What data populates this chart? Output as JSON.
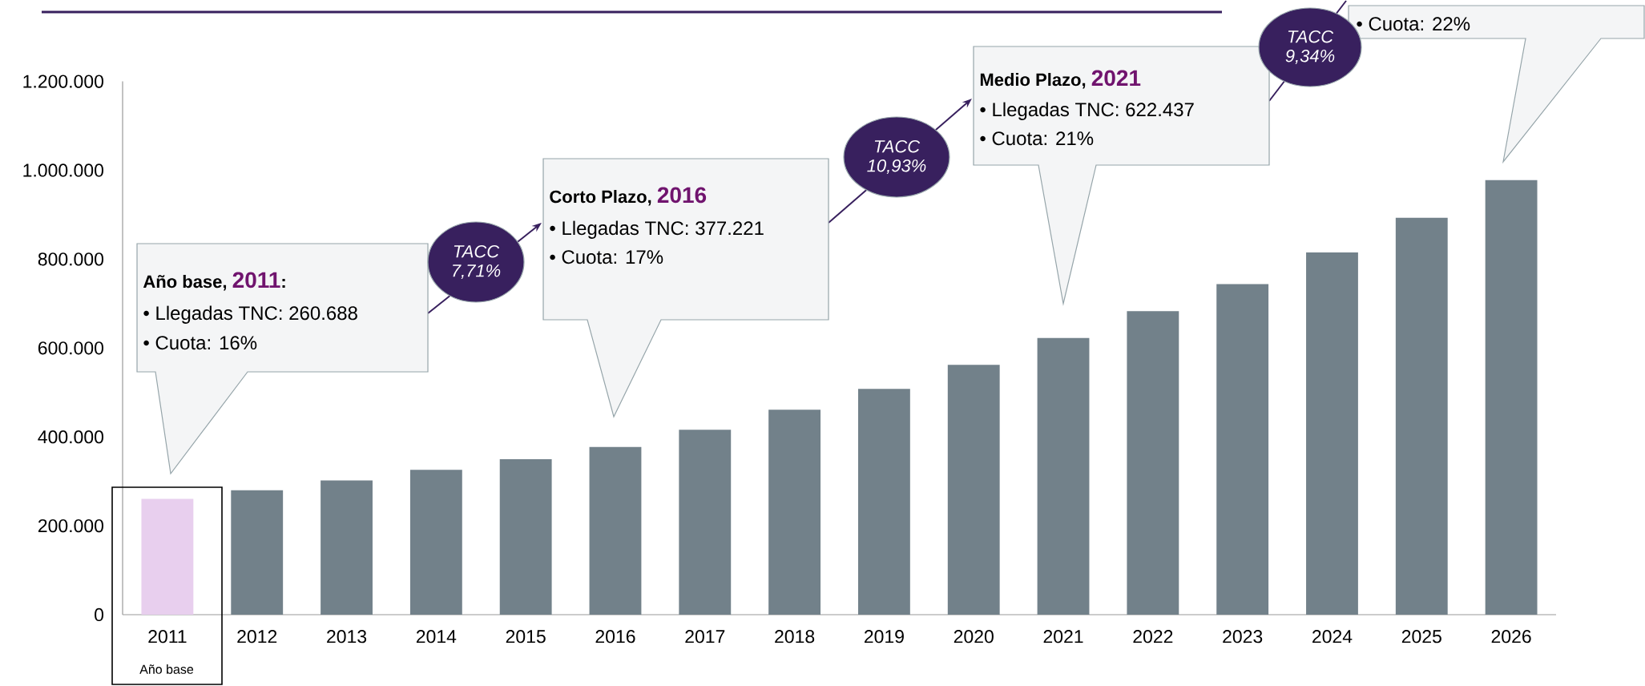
{
  "chart_data": {
    "type": "bar",
    "categories": [
      "2011",
      "2012",
      "2013",
      "2014",
      "2015",
      "2016",
      "2017",
      "2018",
      "2019",
      "2020",
      "2021",
      "2022",
      "2023",
      "2024",
      "2025",
      "2026"
    ],
    "values": [
      260688,
      280000,
      302000,
      326000,
      350000,
      377221,
      416000,
      461000,
      508000,
      562000,
      622437,
      683000,
      744000,
      815000,
      893000,
      978000
    ],
    "colors": [
      "#e8cfee",
      "#72818a",
      "#72818a",
      "#72818a",
      "#72818a",
      "#72818a",
      "#72818a",
      "#72818a",
      "#72818a",
      "#72818a",
      "#72818a",
      "#72818a",
      "#72818a",
      "#72818a",
      "#72818a",
      "#72818a"
    ],
    "ylim": [
      0,
      1200000
    ],
    "yticks": [
      0,
      {
        "value": 200000,
        "label": "200.000"
      },
      {
        "value": 400000,
        "label": "400.000"
      },
      {
        "value": 600000,
        "label": "600.000"
      },
      {
        "value": 800000,
        "label": "800.000"
      },
      {
        "value": 1000000,
        "label": "1.000.000"
      },
      {
        "value": 1200000,
        "label": "1.200.000"
      }
    ],
    "annotations": [
      "Año base,",
      "2011",
      ":",
      "• Llegadas TNC: 260.688",
      "• Cuota: 16%",
      "Corto Plazo,",
      "2016",
      "• Llegadas TNC: 377.221",
      "• Cuota: 17%",
      "Medio Plazo,",
      "2021",
      "• Llegadas TNC: 622.437",
      "• Cuota: 21%",
      "• Cuota: 22%",
      "TACC 7,71%",
      "TACC 10,93%",
      "TACC 9,34%",
      "Año base"
    ]
  }
}
